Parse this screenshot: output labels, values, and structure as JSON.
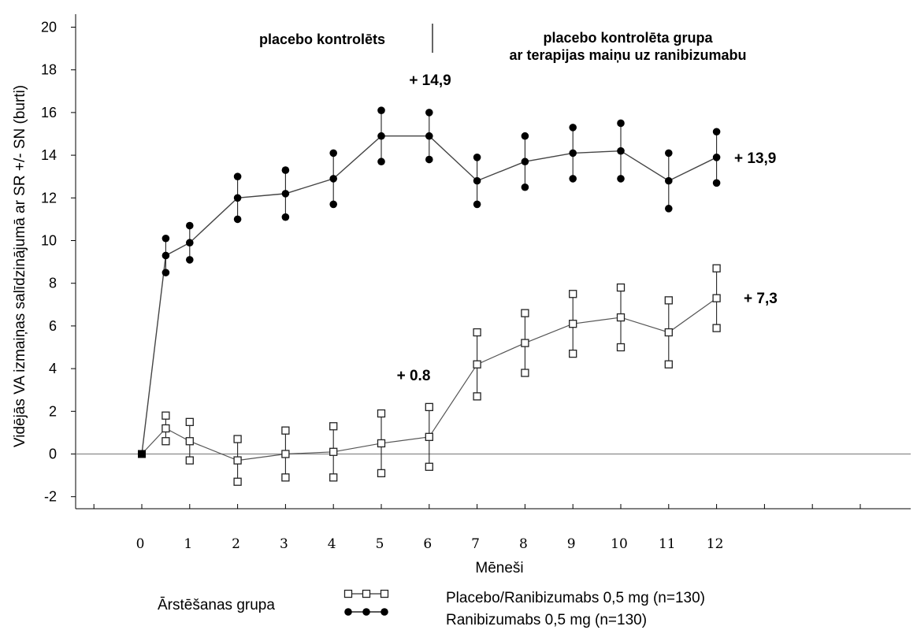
{
  "chart_data": {
    "type": "line",
    "ylabel": "Vidējās  VA izmaiņas salīdzinājumā ar SR +/- SN (burti)",
    "xlabel": "Mēneši",
    "ylim": [
      -2,
      20
    ],
    "yticks": [
      -2,
      0,
      2,
      4,
      6,
      8,
      10,
      12,
      14,
      16,
      18,
      20
    ],
    "xticks": [
      0,
      1,
      2,
      3,
      4,
      5,
      6,
      7,
      8,
      9,
      10,
      11,
      12
    ],
    "grid": false,
    "reference_line_y": 0,
    "period_labels": {
      "left": "placebo kontrolēts",
      "right_line1": "placebo kontrolēta grupa",
      "right_line2": "ar terapijas maiņu uz ranibizumabu"
    },
    "annotations": [
      {
        "text": "+ 14,9",
        "series": "Ranibizumabs 0,5 mg (n=130)",
        "x": 6
      },
      {
        "text": "+ 13,9",
        "series": "Ranibizumabs 0,5 mg (n=130)",
        "x": 12
      },
      {
        "text": "+ 0.8",
        "series": "Placebo/Ranibizumabs 0,5 mg (n=130)",
        "x": 6
      },
      {
        "text": "+ 7,3",
        "series": "Placebo/Ranibizumabs 0,5 mg (n=130)",
        "x": 12
      }
    ],
    "legend": {
      "title": "Ārstēšanas grupa",
      "placement": "bottom"
    },
    "series": [
      {
        "name": "Placebo/Ranibizumabs 0,5 mg (n=130)",
        "marker": "square",
        "x": [
          0,
          0.5,
          1,
          2,
          3,
          4,
          5,
          6,
          7,
          8,
          9,
          10,
          11,
          12
        ],
        "y": [
          0,
          1.2,
          0.6,
          -0.3,
          0.0,
          0.1,
          0.5,
          0.8,
          4.2,
          5.2,
          6.1,
          6.4,
          5.7,
          7.3
        ],
        "err": [
          0,
          0.6,
          0.9,
          1.0,
          1.1,
          1.2,
          1.4,
          1.4,
          1.5,
          1.4,
          1.4,
          1.4,
          1.5,
          1.4
        ]
      },
      {
        "name": "Ranibizumabs 0,5 mg (n=130)",
        "marker": "circle",
        "x": [
          0,
          0.5,
          1,
          2,
          3,
          4,
          5,
          6,
          7,
          8,
          9,
          10,
          11,
          12
        ],
        "y": [
          0,
          9.3,
          9.9,
          12.0,
          12.2,
          12.9,
          14.9,
          14.9,
          12.8,
          13.7,
          14.1,
          14.2,
          12.8,
          13.9
        ],
        "err": [
          0,
          0.8,
          0.8,
          1.0,
          1.1,
          1.2,
          1.2,
          1.1,
          1.1,
          1.2,
          1.2,
          1.3,
          1.3,
          1.2
        ]
      }
    ]
  }
}
